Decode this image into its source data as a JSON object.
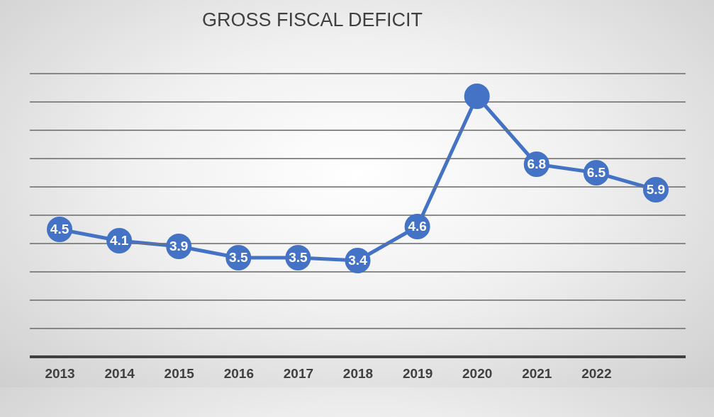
{
  "chart_data": {
    "type": "line",
    "title": "GROSS FISCAL DEFICIT",
    "categories": [
      "2013",
      "2014",
      "2015",
      "2016",
      "2017",
      "2018",
      "2019",
      "2020",
      "2021",
      "2022",
      null
    ],
    "values": [
      4.5,
      4.1,
      3.9,
      3.5,
      3.5,
      3.4,
      4.6,
      9.2,
      6.8,
      6.5,
      5.9
    ],
    "value_labels": [
      "4.5",
      "4.1",
      "3.9",
      "3.5",
      "3.5",
      "3.4",
      "4.6",
      null,
      "6.8",
      "6.5",
      "5.9"
    ],
    "color": "#4472c4",
    "marker": "circle",
    "ylim": [
      0,
      10
    ],
    "yticks": [
      {
        "value": 0,
        "label": null
      },
      {
        "value": 1,
        "label": null
      },
      {
        "value": 2,
        "label": null
      },
      {
        "value": 3,
        "label": null
      },
      {
        "value": 4,
        "label": null
      },
      {
        "value": 5,
        "label": null
      },
      {
        "value": 6,
        "label": null
      },
      {
        "value": 7,
        "label": null
      },
      {
        "value": 8,
        "label": null
      },
      {
        "value": 9,
        "label": null
      },
      {
        "value": 10,
        "label": null
      }
    ],
    "grid": "y",
    "tick_labels": "x"
  }
}
